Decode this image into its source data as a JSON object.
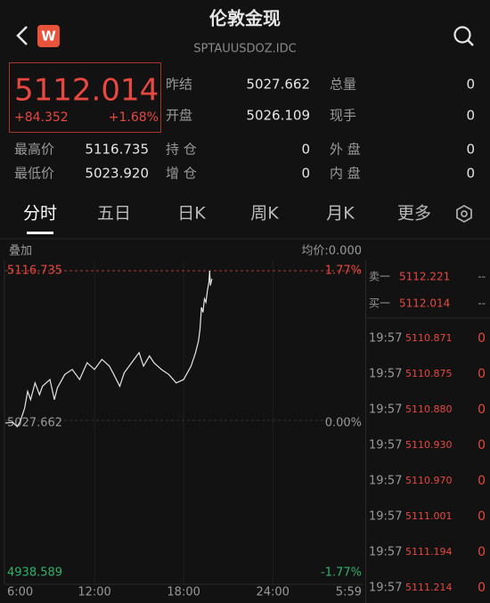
{
  "header": {
    "icon": "W",
    "title": "伦敦金现",
    "subtitle": "SPTAUUSDOZ.IDC"
  },
  "quote": {
    "price": "5112.014",
    "change": "+84.352",
    "change_pct": "+1.68%"
  },
  "stats": [
    [
      {
        "label": "昨结",
        "value": "5027.662"
      },
      {
        "label": "总量",
        "value": "0"
      }
    ],
    [
      {
        "label": "开盘",
        "value": "5026.109"
      },
      {
        "label": "现手",
        "value": "0"
      }
    ],
    [
      {
        "label": "最高价",
        "value": "5116.735"
      },
      {
        "label": "持 仓",
        "value": "0"
      },
      {
        "label": "外 盘",
        "value": "0"
      }
    ],
    [
      {
        "label": "最低价",
        "value": "5023.920"
      },
      {
        "label": "增 仓",
        "value": "0"
      },
      {
        "label": "内 盘",
        "value": "0"
      }
    ]
  ],
  "tabs": [
    "分时",
    "五日",
    "日K",
    "周K",
    "月K",
    "更多"
  ],
  "selected_tab": 0,
  "chart_data": {
    "type": "line",
    "overlay_label": "叠加",
    "avg_label": "均价:0.000",
    "color": "#e6e6e6",
    "x": [
      6.0,
      6.5,
      6.8,
      7.0,
      7.3,
      7.5,
      7.7,
      8.0,
      8.3,
      8.5,
      9.0,
      9.3,
      9.5,
      10.0,
      10.5,
      11.0,
      11.5,
      12.0,
      12.5,
      13.0,
      13.3,
      13.7,
      14.0,
      14.5,
      15.0,
      15.3,
      15.7,
      16.0,
      16.5,
      17.0,
      17.5,
      18.0,
      18.5,
      18.8,
      19.0,
      19.1,
      19.2,
      19.3,
      19.4,
      19.5,
      19.6,
      19.7,
      19.75,
      19.8,
      19.9
    ],
    "values": [
      5026.1,
      5026.5,
      5023.92,
      5027.0,
      5035,
      5045,
      5040,
      5050,
      5043,
      5048,
      5052,
      5040,
      5047,
      5055,
      5058,
      5052,
      5062,
      5058,
      5064,
      5060,
      5055,
      5048,
      5056,
      5062,
      5068,
      5060,
      5066,
      5062,
      5058,
      5055,
      5050,
      5052,
      5060,
      5068,
      5075,
      5082,
      5095,
      5092,
      5100,
      5098,
      5105,
      5110,
      5116.735,
      5108,
      5112.014
    ],
    "xlim": [
      6,
      29.983
    ],
    "xticks": [
      {
        "value": 6,
        "label": "6:00"
      },
      {
        "value": 12,
        "label": "12:00"
      },
      {
        "value": 18,
        "label": "18:00"
      },
      {
        "value": 24,
        "label": "24:00"
      },
      {
        "value": 29.983,
        "label": "5:59"
      }
    ],
    "ylim": [
      4938.589,
      5116.735
    ],
    "yticks": [
      4938.589,
      5027.662,
      5116.735
    ],
    "y2lim": [
      -1.77,
      1.77
    ],
    "y2ticks": [
      {
        "value": -1.77,
        "label": "-1.77%"
      },
      {
        "value": 0,
        "label": "0.00%"
      },
      {
        "value": 1.77,
        "label": "1.77%"
      }
    ]
  },
  "order_book": [
    {
      "label": "卖一",
      "price": "5112.221",
      "volume": "--"
    },
    {
      "label": "买一",
      "price": "5112.014",
      "volume": "--"
    }
  ],
  "trades": [
    {
      "time": "19:57",
      "price": "5110.871",
      "volume": "0"
    },
    {
      "time": "19:57",
      "price": "5110.875",
      "volume": "0"
    },
    {
      "time": "19:57",
      "price": "5110.880",
      "volume": "0"
    },
    {
      "time": "19:57",
      "price": "5110.930",
      "volume": "0"
    },
    {
      "time": "19:57",
      "price": "5110.970",
      "volume": "0"
    },
    {
      "time": "19:57",
      "price": "5111.001",
      "volume": "0"
    },
    {
      "time": "19:57",
      "price": "5111.194",
      "volume": "0"
    },
    {
      "time": "19:57",
      "price": "5111.214",
      "volume": "0"
    }
  ]
}
